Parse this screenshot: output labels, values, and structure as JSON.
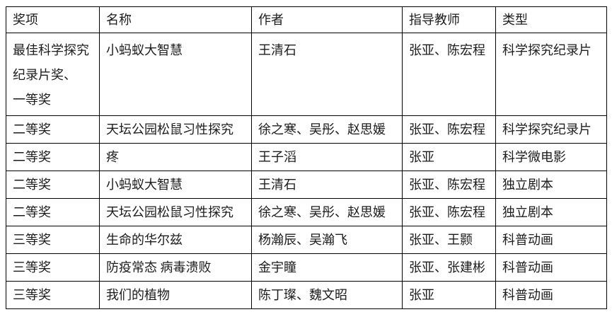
{
  "table": {
    "headers": [
      "奖项",
      "名称",
      "作者",
      "指导教师",
      "类型"
    ],
    "rows": [
      [
        "最佳科学探究\n纪录片奖、\n一等奖",
        "小蚂蚁大智慧",
        "王清石",
        "张亚、陈宏程",
        "科学探究纪录片"
      ],
      [
        "二等奖",
        "天坛公园松鼠习性探究",
        "徐之寒、吴彤、赵思媛",
        "张亚、陈宏程",
        "科学探究纪录片"
      ],
      [
        "二等奖",
        "疼",
        "王子滔",
        "张亚",
        "科学微电影"
      ],
      [
        "二等奖",
        "小蚂蚁大智慧",
        "王清石",
        "张亚、陈宏程",
        "独立剧本"
      ],
      [
        "二等奖",
        "天坛公园松鼠习性探究",
        "徐之寒、吴彤、赵思媛",
        "张亚、陈宏程",
        "独立剧本"
      ],
      [
        "三等奖",
        "生命的华尔兹",
        "杨瀚辰、吴瀚飞",
        "张亚、王颢",
        "科普动画"
      ],
      [
        "三等奖",
        "防疫常态 病毒溃败",
        "金宇瞳",
        "张亚、张建彬",
        "科普动画"
      ],
      [
        "三等奖",
        "我们的植物",
        "陈丁璨、魏文昭",
        "张亚",
        "科普动画"
      ]
    ],
    "colors": {
      "border": "#000000",
      "text": "#1c1c1c",
      "background": "#ffffff"
    }
  }
}
